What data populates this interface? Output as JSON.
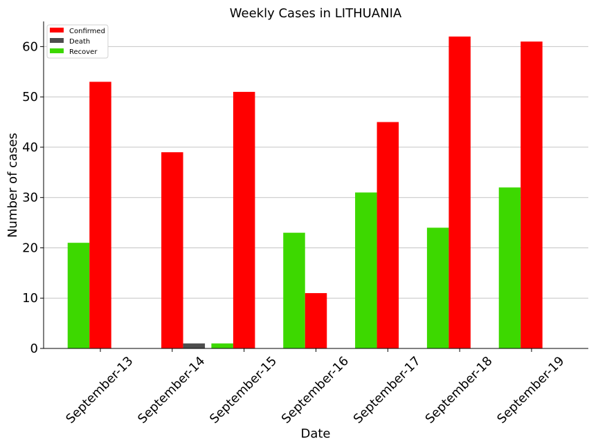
{
  "chart_data": {
    "type": "bar",
    "title": "Weekly Cases in LITHUANIA",
    "xlabel": "Date",
    "ylabel": "Number of cases",
    "categories": [
      "September-13",
      "September-14",
      "September-15",
      "September-16",
      "September-17",
      "September-18",
      "September-19"
    ],
    "series": [
      {
        "name": "Recover",
        "color": "#3dd800",
        "values": [
          21,
          0,
          1,
          23,
          31,
          24,
          32
        ]
      },
      {
        "name": "Confirmed",
        "color": "#ff0000",
        "values": [
          53,
          39,
          51,
          11,
          45,
          62,
          61
        ]
      },
      {
        "name": "Death",
        "color": "#4d4d4d",
        "values": [
          0,
          1,
          0,
          0,
          0,
          0,
          0
        ]
      }
    ],
    "bar_offsets": [
      {
        "series": "Recover",
        "slot": -1
      },
      {
        "series": "Confirmed",
        "slot": 0
      },
      {
        "series": "Death",
        "slot": 1
      }
    ],
    "legend_order": [
      "Confirmed",
      "Death",
      "Recover"
    ],
    "legend_position": "top-left",
    "ylim": [
      0,
      65
    ],
    "yticks": [
      0,
      10,
      20,
      30,
      40,
      50,
      60
    ],
    "grid": "horizontal"
  }
}
